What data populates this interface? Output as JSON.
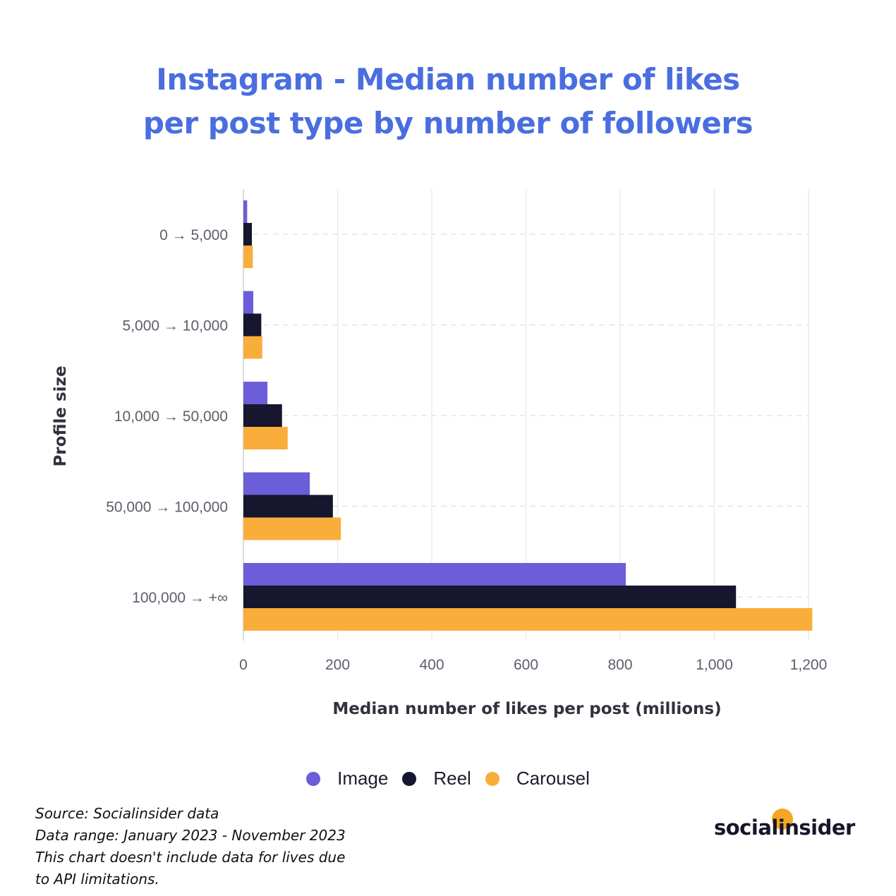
{
  "chart_data": {
    "type": "bar",
    "orientation": "horizontal",
    "title_lines": [
      "Instagram - Median number of likes",
      "per post type by number of followers"
    ],
    "categories": [
      "0 → 5,000",
      "5,000 → 10,000",
      "10,000 → 50,000",
      "50,000 → 100,000",
      "100,000 → +∞"
    ],
    "series": [
      {
        "name": "Image",
        "color": "#6c5dd8",
        "values": [
          8,
          21,
          51,
          141,
          812
        ]
      },
      {
        "name": "Reel",
        "color": "#16162e",
        "values": [
          18,
          38,
          82,
          190,
          1046
        ]
      },
      {
        "name": "Carousel",
        "color": "#f9ad3a",
        "values": [
          20,
          40,
          94,
          207,
          1208
        ]
      }
    ],
    "xlabel": "Median number of likes per post (millions)",
    "ylabel": "Profile size",
    "xlim": [
      0,
      1200
    ],
    "xticks": [
      0,
      200,
      400,
      600,
      800,
      1000,
      1200
    ],
    "xtick_labels": [
      "0",
      "200",
      "400",
      "600",
      "800",
      "1,000",
      "1,200"
    ],
    "grid": true,
    "legend_position": "bottom"
  },
  "notes": [
    "Source: Socialinsider data",
    "Data range: January 2023 - November 2023",
    "This chart doesn't include data for lives due",
    "to API limitations."
  ],
  "brand": {
    "name": "socialinsider",
    "accent_color": "#f5a623"
  }
}
